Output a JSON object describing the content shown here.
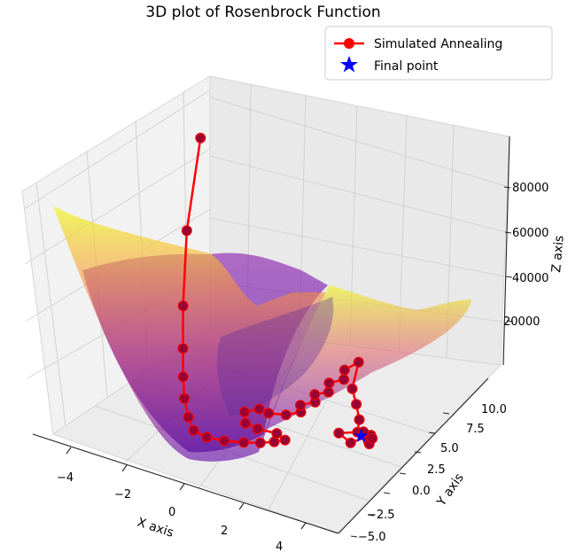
{
  "chart_data": {
    "type": "surface3d",
    "title": "3D plot of Rosenbrock Function",
    "xlabel": "X axis",
    "ylabel": "Y axis",
    "zlabel": "Z axis",
    "xlim": [
      -5,
      5
    ],
    "ylim": [
      -5,
      10
    ],
    "zlim": [
      0,
      90000
    ],
    "x_ticks": [
      "−4",
      "−2",
      "0",
      "2",
      "4"
    ],
    "y_ticks": [
      "−5.0",
      "−2.5",
      "0.0",
      "2.5",
      "5.0",
      "7.5",
      "10.0"
    ],
    "z_ticks": [
      "20000",
      "40000",
      "60000",
      "80000"
    ],
    "grid": true,
    "colormap": "plasma",
    "legend_location": "top-right",
    "series": [
      {
        "name": "Simulated Annealing",
        "color": "#ff0000",
        "marker_color": "#990033",
        "points": [
          [
            -4.6,
            8.0,
            64000
          ],
          [
            -4.2,
            5.6,
            42000
          ],
          [
            -3.6,
            3.6,
            25000
          ],
          [
            -3.2,
            2.5,
            15500
          ],
          [
            -2.9,
            1.7,
            9500
          ],
          [
            -2.6,
            1.0,
            5200
          ],
          [
            -2.2,
            0.3,
            2200
          ],
          [
            -1.8,
            -0.3,
            700
          ],
          [
            -1.3,
            -0.4,
            300
          ],
          [
            -0.8,
            -0.1,
            80
          ],
          [
            -0.3,
            0.4,
            20
          ],
          [
            0.1,
            0.9,
            70
          ],
          [
            0.4,
            1.4,
            180
          ],
          [
            0.6,
            1.9,
            260
          ],
          [
            0.2,
            2.2,
            420
          ],
          [
            -0.4,
            2.0,
            420
          ],
          [
            -0.9,
            2.2,
            200
          ],
          [
            -1.3,
            3.2,
            240
          ],
          [
            -1.0,
            3.8,
            750
          ],
          [
            -0.6,
            3.6,
            1100
          ],
          [
            -0.1,
            3.9,
            1500
          ],
          [
            0.2,
            4.5,
            1950
          ],
          [
            0.0,
            5.0,
            2400
          ],
          [
            0.3,
            5.6,
            2900
          ],
          [
            0.1,
            6.1,
            3600
          ],
          [
            0.4,
            6.6,
            4100
          ],
          [
            0.2,
            7.2,
            5000
          ],
          [
            0.5,
            7.8,
            5700
          ],
          [
            0.3,
            8.4,
            6700
          ],
          [
            0.5,
            9.2,
            8000
          ],
          [
            0.9,
            7.5,
            4700
          ],
          [
            1.3,
            6.8,
            2700
          ],
          [
            1.7,
            6.0,
            950
          ],
          [
            2.0,
            5.0,
            150
          ],
          [
            1.6,
            4.3,
            230
          ],
          [
            2.2,
            3.8,
            160
          ],
          [
            2.4,
            5.2,
            50
          ],
          [
            2.6,
            4.4,
            560
          ],
          [
            3.0,
            3.4,
            3100
          ],
          [
            3.4,
            2.6,
            7800
          ],
          [
            3.6,
            1.2,
            13500
          ]
        ]
      },
      {
        "name": "Final point",
        "color": "#0000ff",
        "marker": "star",
        "points": [
          [
            2.2,
            4.8,
            5
          ]
        ]
      }
    ]
  }
}
